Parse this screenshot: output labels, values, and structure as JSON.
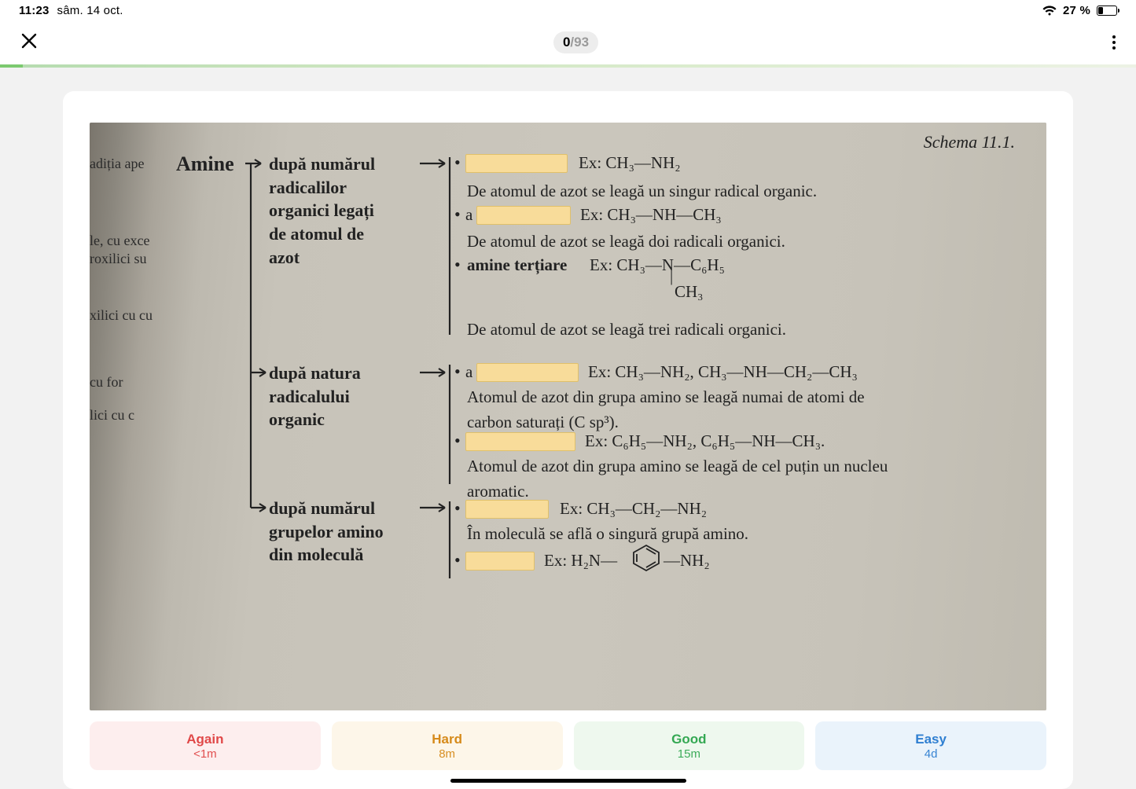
{
  "statusbar": {
    "time": "11:23",
    "date": "sâm. 14 oct.",
    "battery_pct_label": "27 %",
    "battery_fill_pct": 27
  },
  "header": {
    "progress_current": "0",
    "progress_total": "93"
  },
  "card": {
    "schema_title": "Schema 11.1.",
    "root": "Amine",
    "branch1": {
      "title_lines": [
        "după numărul",
        "radicalilor",
        "organici legați",
        "de atomul de",
        "azot"
      ],
      "row1_ex": "Ex: CH₃—NH₂",
      "row1_desc": "De atomul de azot se leagă un singur radical organic.",
      "row2_prefix": "a",
      "row2_ex": "Ex: CH₃—NH—CH₃",
      "row2_desc": "De atomul de azot se leagă doi radicali organici.",
      "row3_label": "amine terțiare",
      "row3_ex_line1": "Ex: CH₃—N—C₆H₅",
      "row3_ex_line2": "CH₃",
      "row3_desc": "De atomul de azot se leagă trei radicali organici."
    },
    "branch2": {
      "title_lines": [
        "după natura",
        "radicalului",
        "organic"
      ],
      "row1_prefix": "a",
      "row1_ex": "Ex: CH₃—NH₂, CH₃—NH—CH₂—CH₃",
      "row1_desc": "Atomul de azot din grupa amino se leagă numai de atomi de carbon saturați (C sp³).",
      "row2_ex": "Ex: C₆H₅—NH₂, C₆H₅—NH—CH₃.",
      "row2_desc": "Atomul de azot din grupa amino se leagă de cel puțin un nucleu aromatic."
    },
    "branch3": {
      "title_lines": [
        "după numărul",
        "grupelor amino",
        "din moleculă"
      ],
      "row1_ex": "Ex: CH₃—CH₂—NH₂",
      "row1_desc": "În moleculă se află o singură grupă amino.",
      "row2_ex_left": "Ex: H₂N—",
      "row2_ex_right": "—NH₂"
    },
    "margin_words": [
      "adiția ape",
      "le, cu exce",
      "roxilici su",
      "xilici cu cu",
      "cu for",
      "lici cu c"
    ]
  },
  "answers": {
    "again": {
      "label": "Again",
      "time": "<1m"
    },
    "hard": {
      "label": "Hard",
      "time": "8m"
    },
    "good": {
      "label": "Good",
      "time": "15m"
    },
    "easy": {
      "label": "Easy",
      "time": "4d"
    }
  },
  "colors": {
    "cloze_bg": "#f8dc9a",
    "again": "#e04848",
    "hard": "#d68a1a",
    "good": "#34a853",
    "easy": "#2f7fd1"
  }
}
